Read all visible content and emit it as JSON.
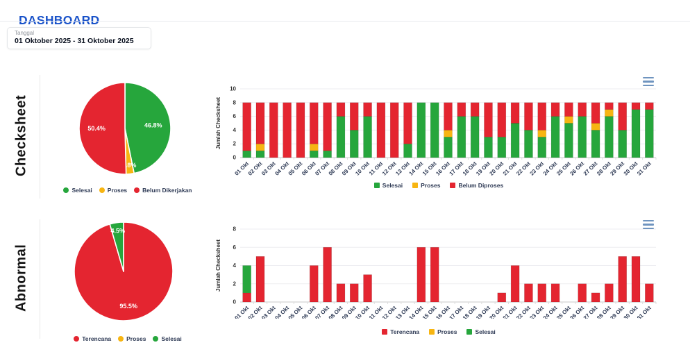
{
  "header": {
    "title": "DASHBOARD"
  },
  "date_filter": {
    "label": "Tanggal",
    "value": "01 Oktober 2025 - 31 Oktober 2025"
  },
  "sections": [
    {
      "label": "Checksheet"
    },
    {
      "label": "Abnormal"
    }
  ],
  "icons": {
    "chart_menu_icon": "hamburger"
  },
  "colors": {
    "header_blue": "#1952c9",
    "green": "#26a63c",
    "yellow": "#f7b512",
    "red": "#e42530",
    "axis_text": "#2e3a55"
  },
  "categories": [
    "01 Okt",
    "02 Okt",
    "03 Okt",
    "04 Okt",
    "05 Okt",
    "06 Okt",
    "07 Okt",
    "08 Okt",
    "09 Okt",
    "10 Okt",
    "11 Okt",
    "12 Okt",
    "13 Okt",
    "14 Okt",
    "15 Okt",
    "16 Okt",
    "17 Okt",
    "18 Okt",
    "19 Okt",
    "20 Okt",
    "21 Okt",
    "22 Okt",
    "23 Okt",
    "24 Okt",
    "25 Okt",
    "26 Okt",
    "27 Okt",
    "28 Okt",
    "29 Okt",
    "30 Okt",
    "31 Okt"
  ],
  "chart_data": [
    {
      "id": "checksheet-pie",
      "type": "pie",
      "legend_marker": "circle",
      "legend_position": "bottom",
      "slices": [
        {
          "name": "Selesai",
          "value": 46.8,
          "label": "46.8%",
          "color": "#26a63c"
        },
        {
          "name": "Proses",
          "value": 2.8,
          "label": "2.8%",
          "color": "#f7b512"
        },
        {
          "name": "Belum Dikerjakan",
          "value": 50.4,
          "label": "50.4%",
          "color": "#e42530"
        }
      ]
    },
    {
      "id": "checksheet-bar",
      "type": "bar",
      "stacked": true,
      "grid": true,
      "ylabel": "Jumlah Checksheet",
      "ylim": [
        0,
        10
      ],
      "yticks": [
        0,
        2,
        4,
        6,
        8,
        10
      ],
      "legend_marker": "square",
      "legend_position": "bottom",
      "series": [
        {
          "name": "Selesai",
          "color": "#26a63c",
          "values": [
            1,
            1,
            0,
            0,
            0,
            1,
            1,
            6,
            4,
            6,
            0,
            0,
            2,
            8,
            8,
            3,
            6,
            6,
            3,
            3,
            5,
            4,
            3,
            6,
            5,
            6,
            4,
            6,
            4,
            7,
            7
          ]
        },
        {
          "name": "Proses",
          "color": "#f7b512",
          "values": [
            0,
            1,
            0,
            0,
            0,
            1,
            0,
            0,
            0,
            0,
            0,
            0,
            0,
            0,
            0,
            1,
            0,
            0,
            0,
            0,
            0,
            0,
            1,
            0,
            1,
            0,
            1,
            1,
            0,
            0,
            0
          ]
        },
        {
          "name": "Belum Diproses",
          "color": "#e42530",
          "values": [
            7,
            6,
            8,
            8,
            8,
            6,
            7,
            2,
            4,
            2,
            8,
            8,
            6,
            0,
            0,
            4,
            2,
            2,
            5,
            5,
            3,
            4,
            4,
            2,
            2,
            2,
            3,
            1,
            4,
            1,
            1
          ]
        }
      ]
    },
    {
      "id": "abnormal-pie",
      "type": "pie",
      "legend_marker": "circle",
      "legend_position": "bottom",
      "slices": [
        {
          "name": "Terencana",
          "value": 95.5,
          "label": "95.5%",
          "color": "#e42530"
        },
        {
          "name": "Proses",
          "value": 0,
          "label": "",
          "color": "#f7b512"
        },
        {
          "name": "Selesai",
          "value": 4.5,
          "label": "4.5%",
          "color": "#26a63c"
        }
      ]
    },
    {
      "id": "abnormal-bar",
      "type": "bar",
      "stacked": true,
      "grid": true,
      "ylabel": "Jumlah Checksheet",
      "ylim": [
        0,
        8
      ],
      "yticks": [
        0,
        2,
        4,
        6,
        8
      ],
      "legend_marker": "square",
      "legend_position": "bottom",
      "series": [
        {
          "name": "Terencana",
          "color": "#e42530",
          "values": [
            1,
            5,
            0,
            0,
            0,
            4,
            6,
            2,
            2,
            3,
            0,
            0,
            0,
            6,
            6,
            0,
            0,
            0,
            0,
            1,
            4,
            2,
            2,
            2,
            0,
            2,
            1,
            2,
            5,
            5,
            2
          ]
        },
        {
          "name": "Proses",
          "color": "#f7b512",
          "values": [
            0,
            0,
            0,
            0,
            0,
            0,
            0,
            0,
            0,
            0,
            0,
            0,
            0,
            0,
            0,
            0,
            0,
            0,
            0,
            0,
            0,
            0,
            0,
            0,
            0,
            0,
            0,
            0,
            0,
            0,
            0
          ]
        },
        {
          "name": "Selesai",
          "color": "#26a63c",
          "values": [
            3,
            0,
            0,
            0,
            0,
            0,
            0,
            0,
            0,
            0,
            0,
            0,
            0,
            0,
            0,
            0,
            0,
            0,
            0,
            0,
            0,
            0,
            0,
            0,
            0,
            0,
            0,
            0,
            0,
            0,
            0
          ]
        }
      ]
    }
  ]
}
